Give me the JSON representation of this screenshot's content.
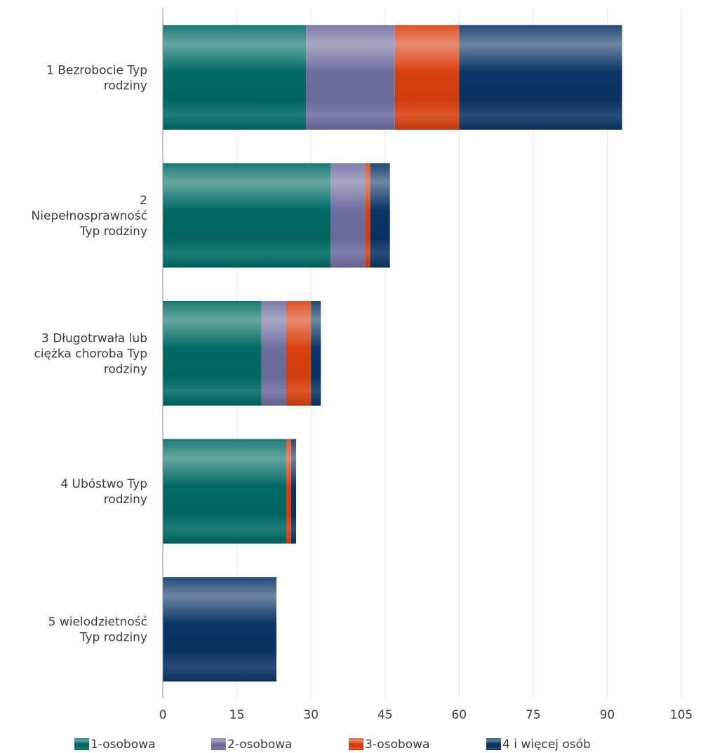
{
  "chart_data": {
    "type": "bar",
    "orientation": "horizontal",
    "stacked": true,
    "categories": [
      "1 Bezrobocie Typ rodziny",
      "2 Niepełnosprawność Typ rodziny",
      "3 Długotrwała lub ciężka choroba Typ rodziny",
      "4 Ubóstwo Typ rodziny",
      "5 wielodzietność Typ rodziny"
    ],
    "category_lines": [
      [
        "1 Bezrobocie Typ",
        "rodziny"
      ],
      [
        "2",
        "Niepełnosprawność",
        "Typ rodziny"
      ],
      [
        "3 Długotrwała lub",
        "ciężka choroba Typ",
        "rodziny"
      ],
      [
        "4 Ubóstwo Typ",
        "rodziny"
      ],
      [
        "5 wielodzietność",
        "Typ rodziny"
      ]
    ],
    "series": [
      {
        "name": "1-osobowa",
        "color": "#006a66",
        "values": [
          29,
          34,
          20,
          25,
          0
        ]
      },
      {
        "name": "2-osobowa",
        "color": "#6f6d9f",
        "values": [
          18,
          7,
          5,
          0,
          0
        ]
      },
      {
        "name": "3-osobowa",
        "color": "#d9400f",
        "values": [
          13,
          1,
          5,
          1,
          0
        ]
      },
      {
        "name": "4  i więcej osób",
        "color": "#0b3566",
        "values": [
          33,
          4,
          2,
          1,
          23
        ]
      }
    ],
    "xlim": [
      0,
      105
    ],
    "xticks": [
      "0",
      "15",
      "30",
      "45",
      "60",
      "75",
      "90",
      "105"
    ],
    "grid": true,
    "legend_position": "bottom",
    "title": "",
    "xlabel": "",
    "ylabel": ""
  }
}
